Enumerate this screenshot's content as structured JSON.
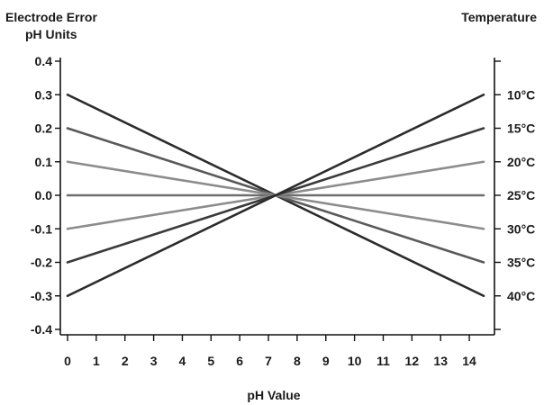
{
  "chart_data": {
    "type": "line",
    "ylabel": [
      "Electrode Error",
      "pH Units"
    ],
    "xlabel": "pH Value",
    "right_label": "Temperature",
    "xlim": [
      0,
      14.5
    ],
    "ylim": [
      -0.4,
      0.4
    ],
    "x_ticks": [
      "0",
      "1",
      "2",
      "3",
      "4",
      "5",
      "6",
      "7",
      "8",
      "9",
      "10",
      "11",
      "12",
      "13",
      "14"
    ],
    "y_ticks": [
      "0.4",
      "0.3",
      "0.2",
      "0.1",
      "0.0",
      "-0.1",
      "-0.2",
      "-0.3",
      "-0.4"
    ],
    "grid": false,
    "series": [
      {
        "name": "10°C",
        "x": [
          0,
          14.5
        ],
        "y": [
          0.3,
          -0.3
        ],
        "color": "#2b2b2b"
      },
      {
        "name": "15°C",
        "x": [
          0,
          14.5
        ],
        "y": [
          0.2,
          -0.2
        ],
        "color": "#5a5a5a"
      },
      {
        "name": "20°C",
        "x": [
          0,
          14.5
        ],
        "y": [
          0.1,
          -0.1
        ],
        "color": "#8c8c8c"
      },
      {
        "name": "25°C",
        "x": [
          0,
          14.5
        ],
        "y": [
          0.0,
          0.0
        ],
        "color": "#6e6e6e"
      },
      {
        "name": "30°C",
        "x": [
          0,
          14.5
        ],
        "y": [
          -0.1,
          0.1
        ],
        "color": "#8c8c8c"
      },
      {
        "name": "35°C",
        "x": [
          0,
          14.5
        ],
        "y": [
          -0.2,
          0.2
        ],
        "color": "#3a3a3a"
      },
      {
        "name": "40°C",
        "x": [
          0,
          14.5
        ],
        "y": [
          -0.3,
          0.3
        ],
        "color": "#2b2b2b"
      }
    ],
    "right_labels": [
      {
        "text": "10°C",
        "y": 0.3
      },
      {
        "text": "15°C",
        "y": 0.2
      },
      {
        "text": "20°C",
        "y": 0.1
      },
      {
        "text": "25°C",
        "y": 0.0
      },
      {
        "text": "30°C",
        "y": -0.1
      },
      {
        "text": "35°C",
        "y": -0.2
      },
      {
        "text": "40°C",
        "y": -0.3
      }
    ]
  }
}
